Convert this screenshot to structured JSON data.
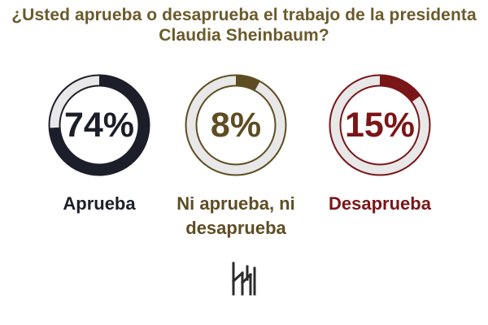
{
  "title": {
    "line1": "¿Usted aprueba o desaprueba el trabajo de la presidenta",
    "line2": "Claudia Sheinbaum?"
  },
  "colors": {
    "title": "#6b5a2a",
    "track": "#e8e8e8"
  },
  "chart_data": {
    "type": "pie",
    "title": "¿Usted aprueba o desaprueba el trabajo de la presidenta Claudia Sheinbaum?",
    "categories": [
      "Aprueba",
      "Ni aprueba, ni desaprueba",
      "Desaprueba"
    ],
    "values": [
      74,
      8,
      15
    ],
    "unit": "%",
    "items": [
      {
        "value": 74,
        "value_label": "74%",
        "label": "Aprueba",
        "label_lines": [
          "Aprueba"
        ],
        "color": "#1c1f2a"
      },
      {
        "value": 8,
        "value_label": "8%",
        "label": "Ni aprueba, ni desaprueba",
        "label_lines": [
          "Ni aprueba, ni",
          "desaprueba"
        ],
        "color": "#5e4d23"
      },
      {
        "value": 15,
        "value_label": "15%",
        "label": "Desaprueba",
        "label_lines": [
          "Desaprueba"
        ],
        "color": "#7a1618"
      }
    ]
  },
  "logo": {
    "icon": "pollster-logo-icon"
  }
}
